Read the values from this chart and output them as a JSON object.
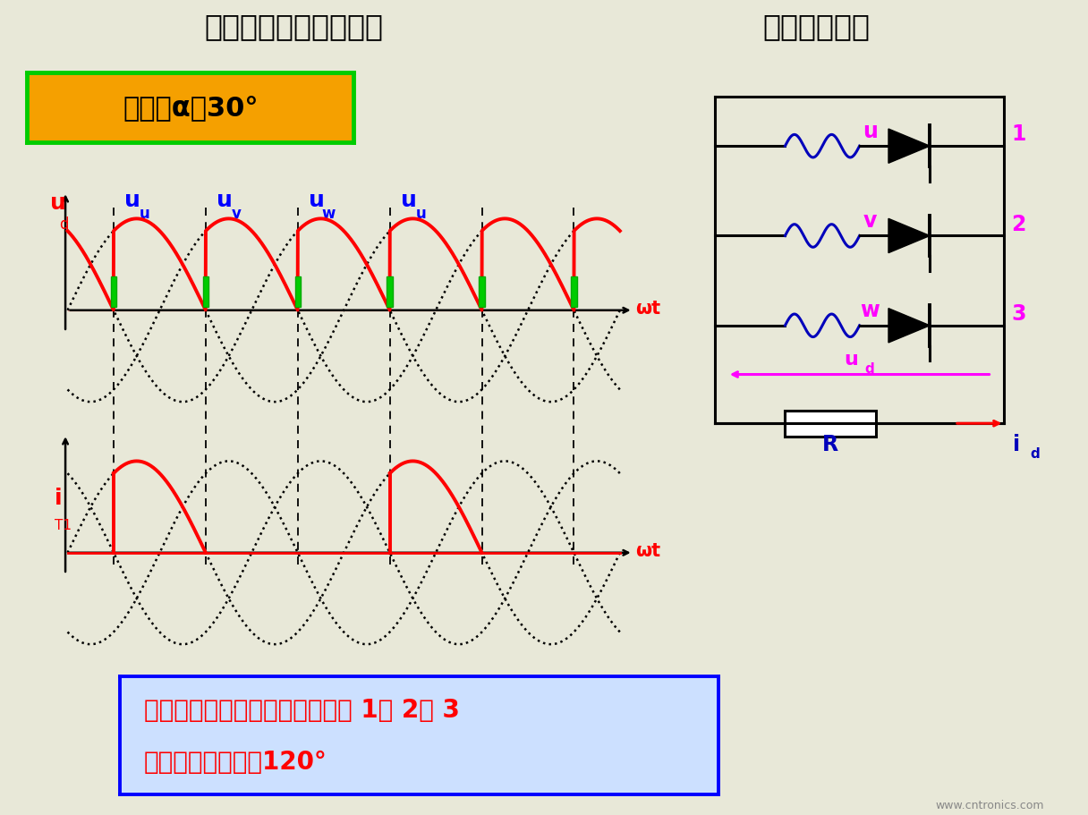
{
  "title_left": "三相半波可控整流电路",
  "title_right": "纯电阻性负载",
  "title_bg": "#a0a0c8",
  "bg_color": "#e8e8d8",
  "box1_text": "控制角α＝30°",
  "box1_bg": "#f5a000",
  "box1_border": "#00cc00",
  "alpha_deg": 30,
  "bottom_text1": "电流处于连续与断续的临界点， 1、 2、 3",
  "bottom_text2": "晶闸管导通角仍为120°",
  "bottom_box_border": "#0000ff",
  "bottom_box_bg": "#cce0ff",
  "bottom_text_color": "#ff0000",
  "circuit_phase_color": "#ff00ff",
  "circuit_wire_color": "#0000bb",
  "circuit_line_color": "#000000",
  "watermark": "www.cntronics.com"
}
